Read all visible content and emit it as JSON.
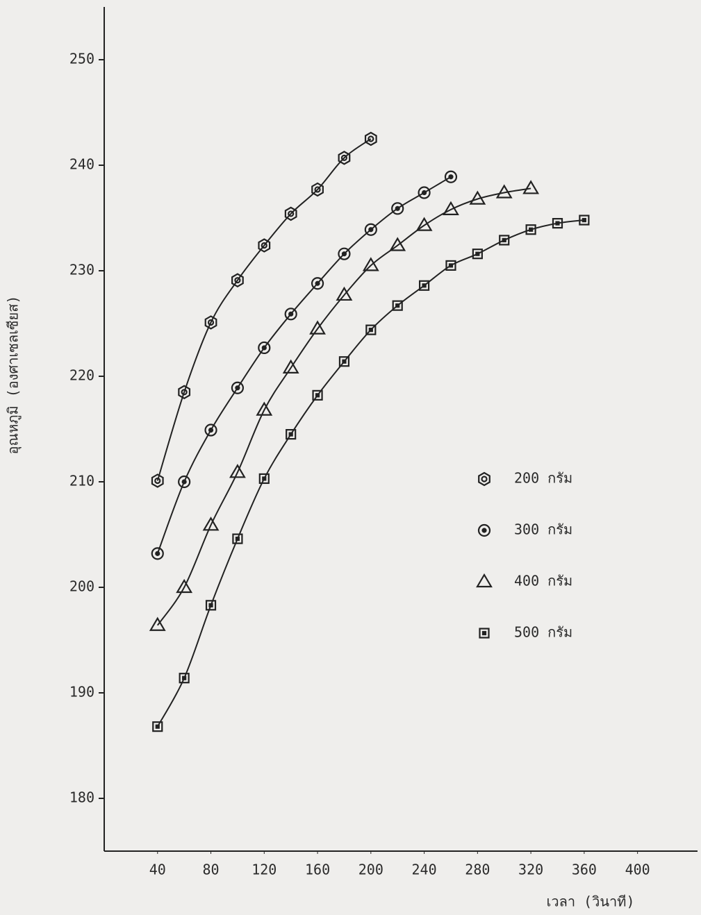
{
  "chart_data": {
    "type": "line",
    "xlabel": "เวลา (วินาที)",
    "ylabel": "อุณหภูมิ (องศาเซลเซียส)",
    "xlim": [
      0,
      445
    ],
    "ylim": [
      175,
      255
    ],
    "xticks": [
      40,
      80,
      120,
      160,
      200,
      240,
      280,
      320,
      360,
      400
    ],
    "yticks": [
      180,
      190,
      200,
      210,
      220,
      230,
      240,
      250
    ],
    "smooth": true,
    "series": [
      {
        "name": "200 กรัม",
        "marker": "hexagon",
        "color": "#222222",
        "x": [
          40,
          60,
          80,
          100,
          120,
          140,
          160,
          180,
          200
        ],
        "values": [
          210.1,
          218.5,
          225.1,
          229.1,
          232.4,
          235.4,
          237.7,
          240.7,
          242.5
        ]
      },
      {
        "name": "300 กรัม",
        "marker": "circle",
        "color": "#222222",
        "x": [
          40,
          60,
          80,
          100,
          120,
          140,
          160,
          180,
          200,
          220,
          240,
          260
        ],
        "values": [
          203.2,
          210.0,
          214.9,
          218.9,
          222.7,
          225.9,
          228.8,
          231.6,
          233.9,
          235.9,
          237.4,
          238.9
        ]
      },
      {
        "name": "400 กรัม",
        "marker": "triangle",
        "color": "#222222",
        "x": [
          40,
          60,
          80,
          100,
          120,
          140,
          160,
          180,
          200,
          220,
          240,
          260,
          280,
          300,
          320
        ],
        "values": [
          196.4,
          200.0,
          205.9,
          210.9,
          216.8,
          220.8,
          224.5,
          227.7,
          230.5,
          232.4,
          234.3,
          235.8,
          236.8,
          237.4,
          237.8
        ]
      },
      {
        "name": "500 กรัม",
        "marker": "square",
        "color": "#222222",
        "x": [
          40,
          60,
          80,
          100,
          120,
          140,
          160,
          180,
          200,
          220,
          240,
          260,
          280,
          300,
          320,
          340,
          360
        ],
        "values": [
          186.8,
          191.4,
          198.3,
          204.6,
          210.3,
          214.5,
          218.2,
          221.4,
          224.4,
          226.7,
          228.6,
          230.5,
          231.6,
          232.9,
          233.9,
          234.5,
          234.8
        ]
      }
    ]
  }
}
